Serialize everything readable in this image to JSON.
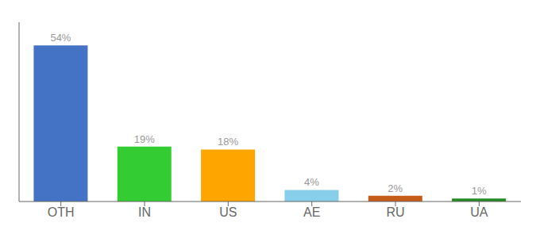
{
  "chart_data": {
    "type": "bar",
    "categories": [
      "OTH",
      "IN",
      "US",
      "AE",
      "RU",
      "UA"
    ],
    "values": [
      54,
      19,
      18,
      4,
      2,
      1
    ],
    "value_labels": [
      "54%",
      "19%",
      "18%",
      "4%",
      "2%",
      "1%"
    ],
    "data_labels": true,
    "colors": [
      "#4472C4",
      "#33CC33",
      "#FFA500",
      "#87CEEB",
      "#C65C1A",
      "#228B22"
    ],
    "ylim": [
      0,
      62
    ],
    "tick_labels": "x",
    "grid": false
  }
}
